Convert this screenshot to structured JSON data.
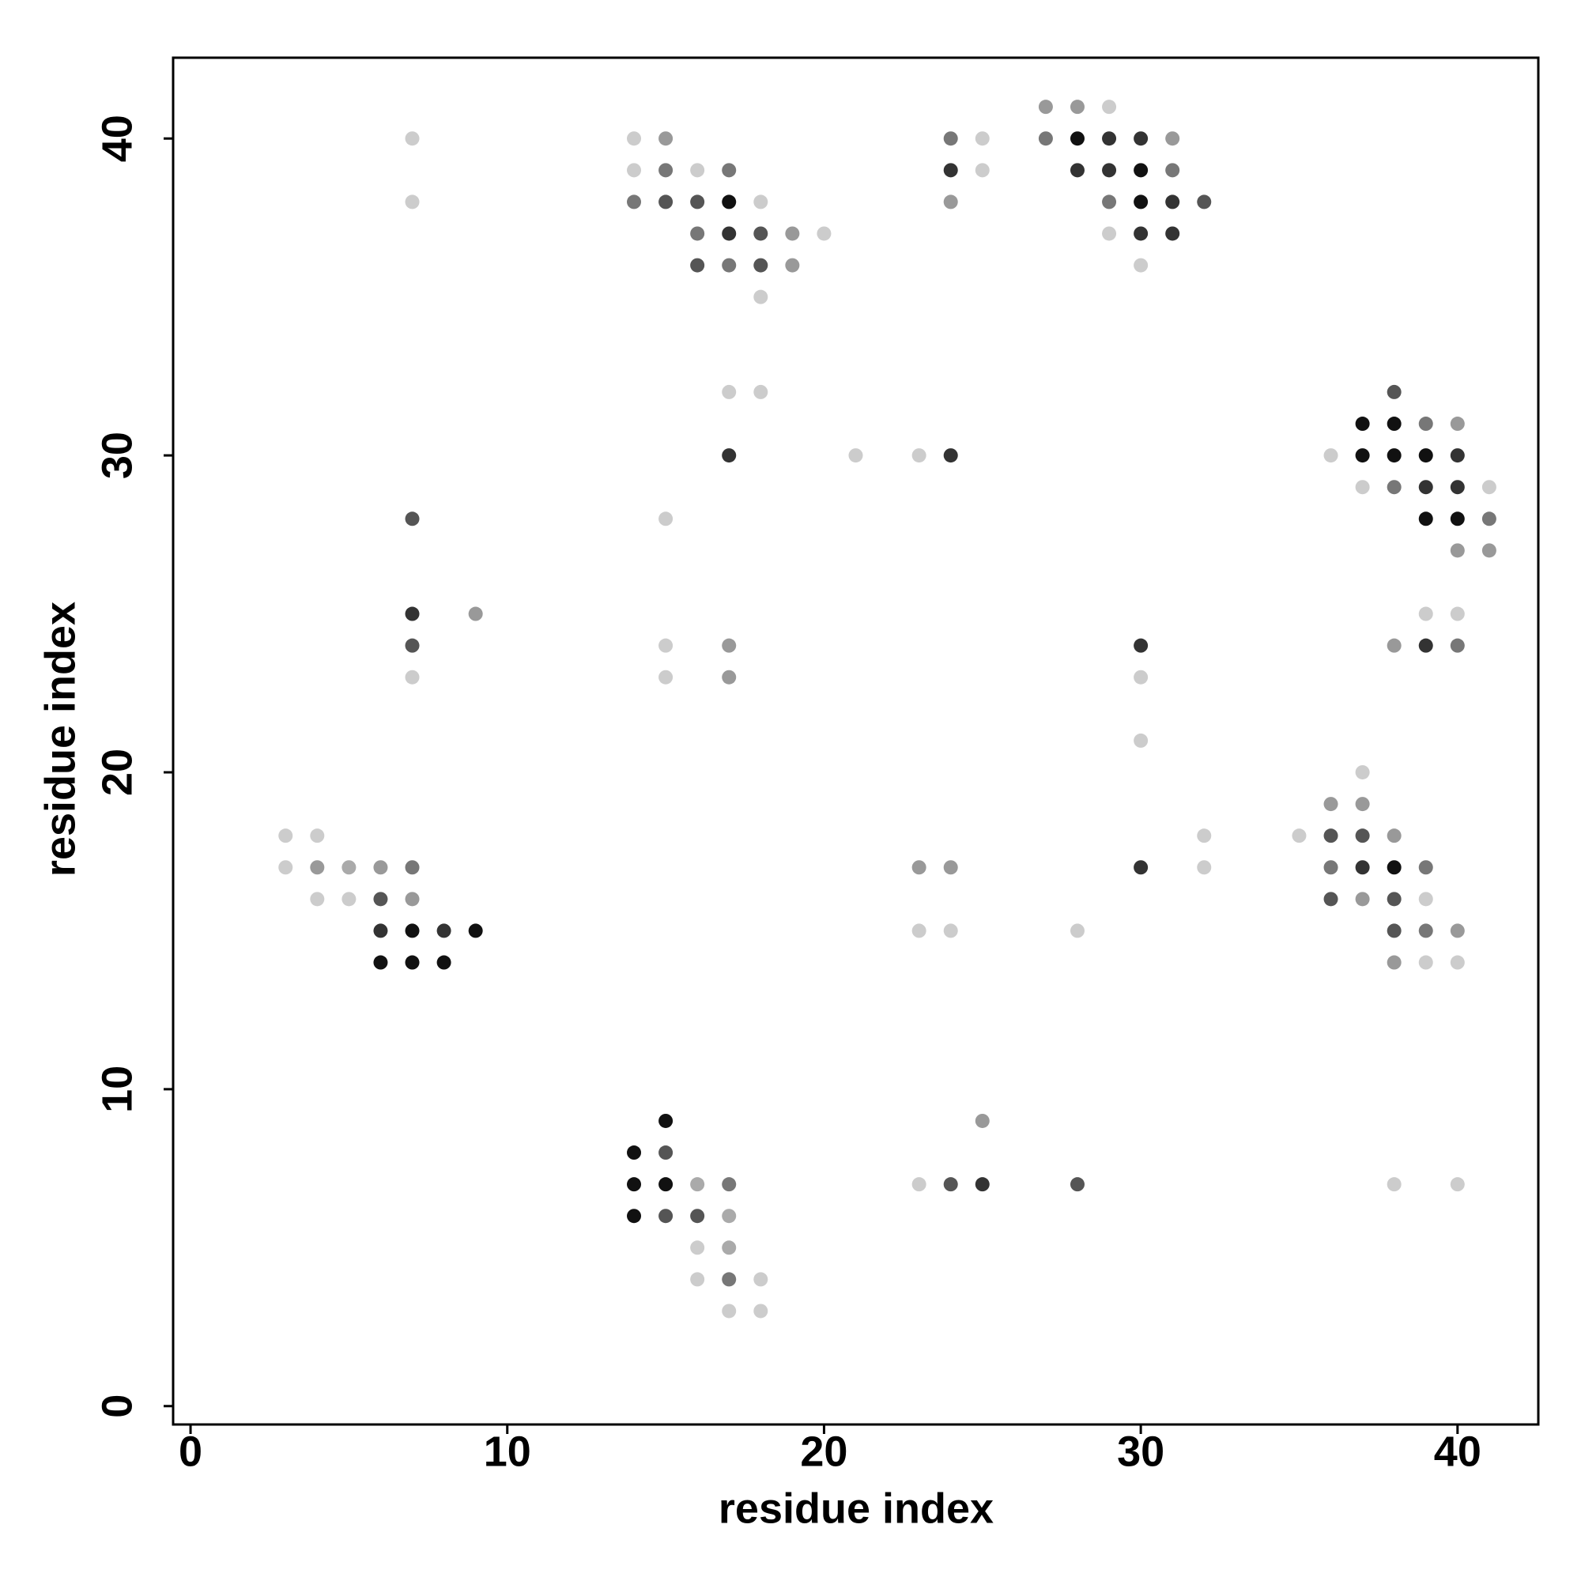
{
  "chart_data": {
    "type": "scatter",
    "xlabel": "residue index",
    "ylabel": "residue index",
    "xlim": [
      -0.55,
      42.55
    ],
    "ylim": [
      -0.58,
      42.55
    ],
    "xticks": [
      0,
      10,
      20,
      30,
      40
    ],
    "yticks": [
      0,
      10,
      20,
      30,
      40
    ],
    "series": [
      {
        "x": [
          27,
          28,
          29,
          7,
          14,
          15,
          24,
          25,
          27,
          28,
          29,
          30,
          31,
          14,
          15,
          16,
          17,
          24,
          25,
          28,
          29,
          30,
          31,
          7,
          14,
          15,
          16,
          17,
          18,
          24,
          29,
          30,
          31,
          32,
          16,
          17,
          18,
          19,
          20,
          29,
          30,
          31,
          16,
          17,
          18,
          19,
          30,
          18,
          17,
          18,
          38,
          37,
          38,
          39,
          40,
          17,
          21,
          23,
          24,
          36,
          37,
          38,
          39,
          40,
          37,
          38,
          39,
          40,
          41,
          7,
          15,
          39,
          40,
          41,
          40,
          41,
          7,
          9,
          39,
          40,
          7,
          15,
          17,
          30,
          38,
          39,
          40,
          7,
          15,
          17,
          30,
          30,
          37,
          36,
          37,
          3,
          4,
          32,
          35,
          36,
          37,
          38,
          3,
          4,
          5,
          6,
          7,
          23,
          24,
          30,
          32,
          36,
          37,
          38,
          39,
          4,
          5,
          6,
          7,
          36,
          37,
          38,
          39,
          6,
          7,
          8,
          9,
          23,
          24,
          28,
          38,
          39,
          40,
          6,
          7,
          8,
          38,
          39,
          40,
          15,
          25,
          14,
          15,
          14,
          15,
          16,
          17,
          23,
          24,
          25,
          28,
          38,
          40,
          14,
          15,
          16,
          17,
          16,
          17,
          16,
          17,
          18,
          17,
          18
        ],
        "values": [
          41,
          41,
          41,
          40,
          40,
          40,
          40,
          40,
          40,
          40,
          40,
          40,
          40,
          39,
          39,
          39,
          39,
          39,
          39,
          39,
          39,
          39,
          39,
          38,
          38,
          38,
          38,
          38,
          38,
          38,
          38,
          38,
          38,
          38,
          37,
          37,
          37,
          37,
          37,
          37,
          37,
          37,
          36,
          36,
          36,
          36,
          36,
          35,
          32,
          32,
          32,
          31,
          31,
          31,
          31,
          30,
          30,
          30,
          30,
          30,
          30,
          30,
          30,
          30,
          29,
          29,
          29,
          29,
          29,
          28,
          28,
          28,
          28,
          28,
          27,
          27,
          25,
          25,
          25,
          25,
          24,
          24,
          24,
          24,
          24,
          24,
          24,
          23,
          23,
          23,
          23,
          21,
          20,
          19,
          19,
          18,
          18,
          18,
          18,
          18,
          18,
          18,
          17,
          17,
          17,
          17,
          17,
          17,
          17,
          17,
          17,
          17,
          17,
          17,
          17,
          16,
          16,
          16,
          16,
          16,
          16,
          16,
          16,
          15,
          15,
          15,
          15,
          15,
          15,
          15,
          15,
          15,
          15,
          14,
          14,
          14,
          14,
          14,
          14,
          9,
          9,
          8,
          8,
          7,
          7,
          7,
          7,
          7,
          7,
          7,
          7,
          7,
          7,
          6,
          6,
          6,
          6,
          5,
          5,
          4,
          4,
          4,
          3,
          3
        ],
        "colors": [
          "#999",
          "#999",
          "#ccc",
          "#ccc",
          "#ccc",
          "#999",
          "#777",
          "#ccc",
          "#777",
          "#111",
          "#333",
          "#333",
          "#999",
          "#ccc",
          "#777",
          "#ccc",
          "#777",
          "#333",
          "#ccc",
          "#333",
          "#333",
          "#111",
          "#777",
          "#ccc",
          "#777",
          "#555",
          "#555",
          "#111",
          "#ccc",
          "#999",
          "#777",
          "#111",
          "#333",
          "#555",
          "#777",
          "#333",
          "#555",
          "#999",
          "#ccc",
          "#ccc",
          "#333",
          "#333",
          "#555",
          "#777",
          "#555",
          "#999",
          "#ccc",
          "#ccc",
          "#ccc",
          "#ccc",
          "#555",
          "#111",
          "#111",
          "#777",
          "#999",
          "#333",
          "#ccc",
          "#ccc",
          "#333",
          "#ccc",
          "#111",
          "#111",
          "#111",
          "#333",
          "#ccc",
          "#777",
          "#333",
          "#333",
          "#ccc",
          "#555",
          "#ccc",
          "#111",
          "#111",
          "#777",
          "#999",
          "#999",
          "#333",
          "#999",
          "#ccc",
          "#ccc",
          "#555",
          "#ccc",
          "#999",
          "#333",
          "#999",
          "#333",
          "#777",
          "#ccc",
          "#ccc",
          "#999",
          "#ccc",
          "#ccc",
          "#ccc",
          "#999",
          "#999",
          "#ccc",
          "#ccc",
          "#ccc",
          "#ccc",
          "#555",
          "#555",
          "#999",
          "#ccc",
          "#999",
          "#aaa",
          "#999",
          "#777",
          "#999",
          "#999",
          "#333",
          "#ccc",
          "#777",
          "#333",
          "#111",
          "#777",
          "#ccc",
          "#ccc",
          "#555",
          "#999",
          "#555",
          "#999",
          "#555",
          "#ccc",
          "#333",
          "#111",
          "#333",
          "#111",
          "#ccc",
          "#ccc",
          "#ccc",
          "#555",
          "#777",
          "#999",
          "#111",
          "#111",
          "#111",
          "#999",
          "#ccc",
          "#ccc",
          "#111",
          "#999",
          "#111",
          "#555",
          "#111",
          "#111",
          "#aaa",
          "#777",
          "#ccc",
          "#555",
          "#333",
          "#555",
          "#ccc",
          "#ccc",
          "#111",
          "#555",
          "#555",
          "#aaa",
          "#ccc",
          "#aaa",
          "#ccc",
          "#777",
          "#ccc",
          "#ccc",
          "#ccc"
        ]
      }
    ]
  }
}
